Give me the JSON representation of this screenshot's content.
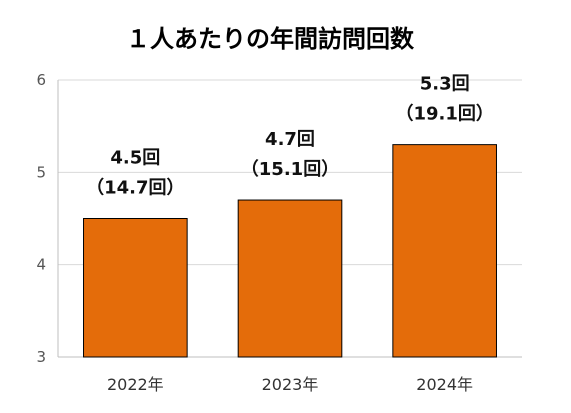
{
  "chart_data": {
    "type": "bar",
    "title": "１人あたりの年間訪問回数",
    "categories": [
      "2022年",
      "2023年",
      "2024年"
    ],
    "values": [
      4.5,
      4.7,
      5.3
    ],
    "data_labels": [
      {
        "line1": "4.5回",
        "line2": "（14.7回）"
      },
      {
        "line1": "4.7回",
        "line2": "（15.1回）"
      },
      {
        "line1": "5.3回",
        "line2": "（19.1回）"
      }
    ],
    "yticks": [
      3,
      4,
      5,
      6
    ],
    "ylim": [
      3,
      6
    ],
    "grid": true,
    "bar_color": "#E46C0A"
  }
}
